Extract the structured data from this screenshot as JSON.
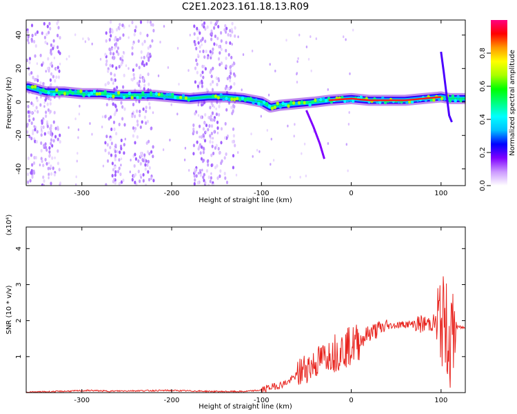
{
  "title": "C2E1.2023.161.18.13.R09",
  "chart_data": [
    {
      "type": "heatmap",
      "xlabel": "Height of straight line (km)",
      "ylabel": "Frequency (Hz)",
      "xlim": [
        -362,
        127
      ],
      "ylim": [
        -50,
        49
      ],
      "x_ticks": [
        -300,
        -200,
        -100,
        0,
        100
      ],
      "y_ticks": [
        -40,
        -20,
        0,
        20,
        40
      ],
      "grid": false,
      "colorbar": {
        "label": "Normalized spectral amplitude",
        "range": [
          0.0,
          1.0
        ],
        "ticks": [
          0.0,
          0.2,
          0.4,
          0.6,
          0.8
        ],
        "colormap": [
          "#ffffff",
          "#cc99ff",
          "#7f00ff",
          "#0000ff",
          "#00bfff",
          "#00ffff",
          "#00ff7f",
          "#00ff00",
          "#aaff00",
          "#ffff00",
          "#ff9900",
          "#ff0000",
          "#ff0080"
        ]
      },
      "ridge": {
        "x": [
          -360,
          -340,
          -320,
          -300,
          -280,
          -260,
          -240,
          -220,
          -200,
          -180,
          -160,
          -140,
          -120,
          -100,
          -90,
          -80,
          -60,
          -40,
          -25,
          0,
          20,
          40,
          60,
          80,
          100,
          110,
          127
        ],
        "y": [
          9,
          6,
          6,
          5,
          5,
          4,
          4,
          4,
          3,
          2,
          3,
          3,
          2,
          0,
          -3,
          -2,
          -1,
          0,
          1,
          2,
          1,
          1,
          1,
          2,
          3,
          2,
          2
        ]
      },
      "noise_columns_x": [
        -355,
        -340,
        -330,
        -268,
        -258,
        -238,
        -226,
        -170,
        -160,
        -150,
        -135
      ]
    },
    {
      "type": "line",
      "xlabel": "Height of straight line (km)",
      "ylabel": "SNR (10 * v/v)",
      "y_multiplier": "(x10⁴)",
      "xlim": [
        -362,
        127
      ],
      "ylim": [
        0,
        4.6
      ],
      "x_ticks": [
        -300,
        -200,
        -100,
        0,
        100
      ],
      "y_ticks": [
        1,
        2,
        3,
        4
      ],
      "grid": false,
      "series": [
        {
          "color": "#e8241e",
          "x": [
            -362,
            -330,
            -290,
            -270,
            -250,
            -200,
            -150,
            -120,
            -100,
            -90,
            -80,
            -70,
            -60,
            -50,
            -40,
            -30,
            -20,
            -10,
            0,
            10,
            20,
            40,
            60,
            80,
            95,
            100,
            105,
            110,
            115,
            120,
            127
          ],
          "y": [
            0.01,
            0.03,
            0.06,
            0.04,
            0.05,
            0.06,
            0.03,
            0.03,
            0.07,
            0.15,
            0.2,
            0.3,
            0.5,
            0.7,
            0.8,
            1.0,
            1.1,
            1.2,
            1.3,
            1.45,
            1.65,
            1.85,
            1.9,
            1.9,
            1.95,
            2.0,
            1.9,
            1.3,
            1.8,
            1.82,
            1.8
          ]
        }
      ]
    }
  ]
}
